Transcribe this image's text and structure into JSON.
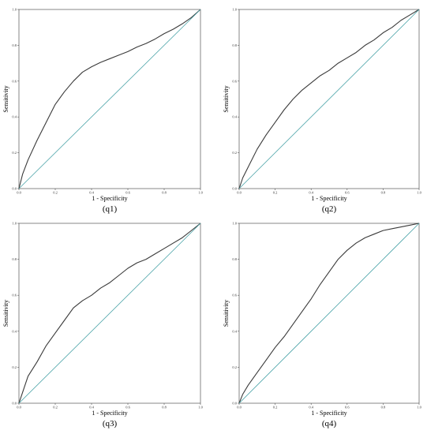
{
  "chart_data": [
    {
      "type": "line",
      "caption": "(q1)",
      "xlabel": "1 - Specificity",
      "ylabel": "Sensitivity",
      "xlim": [
        0,
        1
      ],
      "ylim": [
        0,
        1
      ],
      "ticks": [
        "0.0",
        "0.2",
        "0.4",
        "0.6",
        "0.8",
        "1.0"
      ],
      "grid": false,
      "series": [
        {
          "role": "roc",
          "color": "#3a3a3a",
          "x": [
            0,
            0.02,
            0.05,
            0.1,
            0.15,
            0.2,
            0.25,
            0.3,
            0.35,
            0.4,
            0.45,
            0.5,
            0.55,
            0.6,
            0.65,
            0.7,
            0.75,
            0.8,
            0.85,
            0.9,
            0.95,
            1.0
          ],
          "y": [
            0,
            0.08,
            0.16,
            0.27,
            0.37,
            0.47,
            0.54,
            0.6,
            0.65,
            0.68,
            0.705,
            0.725,
            0.745,
            0.765,
            0.79,
            0.81,
            0.835,
            0.865,
            0.89,
            0.92,
            0.955,
            1.0
          ]
        },
        {
          "role": "reference",
          "color": "#4aa3a8",
          "x": [
            0,
            1
          ],
          "y": [
            0,
            1
          ]
        }
      ]
    },
    {
      "type": "line",
      "caption": "(q2)",
      "xlabel": "1 - Specificity",
      "ylabel": "Sensitivity",
      "xlim": [
        0,
        1
      ],
      "ylim": [
        0,
        1
      ],
      "ticks": [
        "0.0",
        "0.2",
        "0.4",
        "0.6",
        "0.8",
        "1.0"
      ],
      "grid": false,
      "series": [
        {
          "role": "roc",
          "color": "#3a3a3a",
          "x": [
            0,
            0.02,
            0.05,
            0.1,
            0.15,
            0.2,
            0.25,
            0.3,
            0.35,
            0.4,
            0.45,
            0.5,
            0.55,
            0.6,
            0.65,
            0.7,
            0.75,
            0.8,
            0.85,
            0.9,
            0.95,
            1.0
          ],
          "y": [
            0,
            0.06,
            0.12,
            0.22,
            0.3,
            0.37,
            0.44,
            0.5,
            0.55,
            0.59,
            0.63,
            0.66,
            0.7,
            0.73,
            0.76,
            0.8,
            0.83,
            0.87,
            0.9,
            0.94,
            0.97,
            1.0
          ]
        },
        {
          "role": "reference",
          "color": "#4aa3a8",
          "x": [
            0,
            1
          ],
          "y": [
            0,
            1
          ]
        }
      ]
    },
    {
      "type": "line",
      "caption": "(q3)",
      "xlabel": "1 - Specificity",
      "ylabel": "Sensitivity",
      "xlim": [
        0,
        1
      ],
      "ylim": [
        0,
        1
      ],
      "ticks": [
        "0.0",
        "0.2",
        "0.4",
        "0.6",
        "0.8",
        "1.0"
      ],
      "grid": false,
      "series": [
        {
          "role": "roc",
          "color": "#3a3a3a",
          "x": [
            0,
            0.02,
            0.05,
            0.1,
            0.15,
            0.2,
            0.25,
            0.3,
            0.35,
            0.4,
            0.45,
            0.5,
            0.55,
            0.6,
            0.65,
            0.7,
            0.75,
            0.8,
            0.85,
            0.9,
            0.95,
            1.0
          ],
          "y": [
            0,
            0.06,
            0.15,
            0.23,
            0.32,
            0.39,
            0.46,
            0.53,
            0.57,
            0.6,
            0.64,
            0.67,
            0.71,
            0.75,
            0.78,
            0.8,
            0.83,
            0.86,
            0.89,
            0.92,
            0.96,
            1.0
          ]
        },
        {
          "role": "reference",
          "color": "#4aa3a8",
          "x": [
            0,
            1
          ],
          "y": [
            0,
            1
          ]
        }
      ]
    },
    {
      "type": "line",
      "caption": "(q4)",
      "xlabel": "1 - Specificity",
      "ylabel": "Sensitivity",
      "xlim": [
        0,
        1
      ],
      "ylim": [
        0,
        1
      ],
      "ticks": [
        "0.0",
        "0.2",
        "0.4",
        "0.6",
        "0.8",
        "1.0"
      ],
      "grid": false,
      "series": [
        {
          "role": "roc",
          "color": "#3a3a3a",
          "x": [
            0,
            0.02,
            0.05,
            0.1,
            0.15,
            0.2,
            0.25,
            0.3,
            0.35,
            0.4,
            0.45,
            0.5,
            0.55,
            0.6,
            0.65,
            0.7,
            0.75,
            0.8,
            0.85,
            0.9,
            0.95,
            1.0
          ],
          "y": [
            0,
            0.05,
            0.1,
            0.17,
            0.24,
            0.31,
            0.37,
            0.44,
            0.51,
            0.58,
            0.66,
            0.73,
            0.8,
            0.85,
            0.89,
            0.92,
            0.94,
            0.96,
            0.97,
            0.98,
            0.99,
            1.0
          ]
        },
        {
          "role": "reference",
          "color": "#4aa3a8",
          "x": [
            0,
            1
          ],
          "y": [
            0,
            1
          ]
        }
      ]
    }
  ]
}
